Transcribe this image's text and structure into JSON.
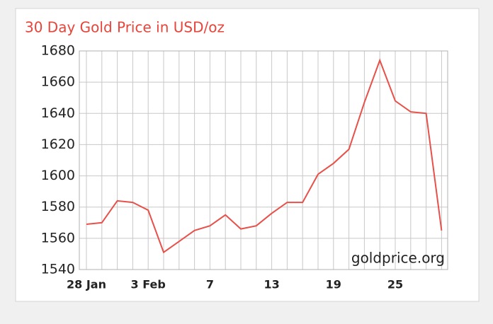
{
  "chart_data": {
    "type": "line",
    "title": "30 Day Gold Price in USD/oz",
    "annotation": "goldprice.org",
    "categories": [
      "28 Jan",
      null,
      null,
      null,
      "3 Feb",
      null,
      null,
      null,
      "7",
      null,
      null,
      null,
      "13",
      null,
      null,
      null,
      "19",
      null,
      null,
      null,
      "25",
      null,
      null,
      null
    ],
    "series": [
      {
        "name": "Gold price",
        "color": "#e8504a",
        "values": [
          1569,
          1570,
          1584,
          1583,
          1578,
          1551,
          1558,
          1565,
          1568,
          1575,
          1566,
          1568,
          1576,
          1583,
          1583,
          1601,
          1608,
          1617,
          1647,
          1674,
          1648,
          1641,
          1640,
          1565
        ]
      }
    ],
    "ylim": [
      1540,
      1680
    ],
    "yticks": [
      1540,
      1560,
      1580,
      1600,
      1620,
      1640,
      1660,
      1680
    ],
    "grid": true
  }
}
